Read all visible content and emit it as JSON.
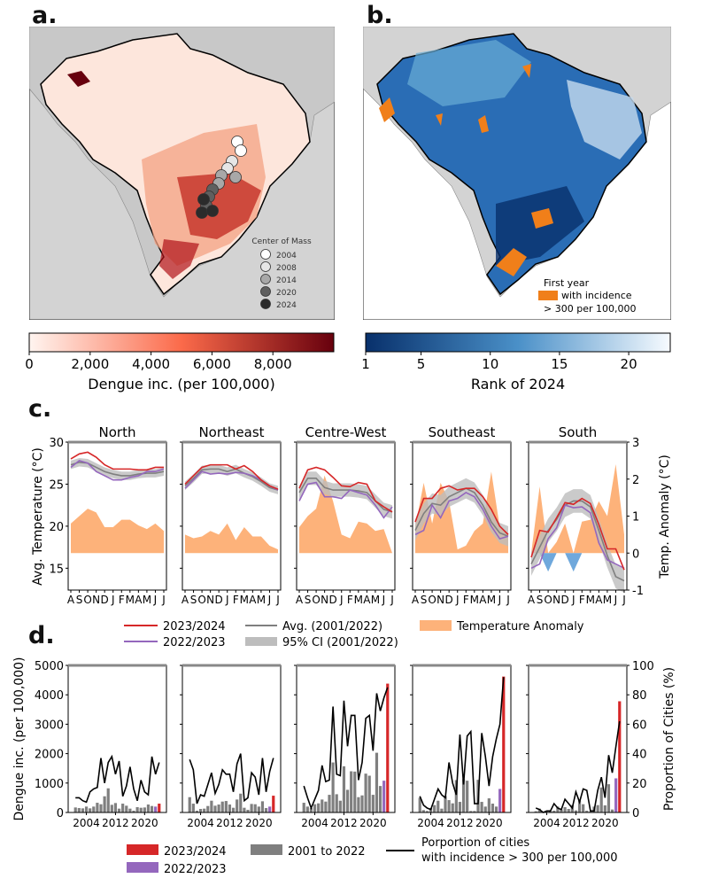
{
  "panels": {
    "a": "a.",
    "b": "b.",
    "c": "c.",
    "d": "d."
  },
  "map_a": {
    "legend_title": "Center of Mass",
    "legend_years": [
      "2004",
      "2008",
      "2014",
      "2020",
      "2024"
    ],
    "legend_colors": [
      "#ffffff",
      "#e6e6e6",
      "#a8a8a8",
      "#5f5f5f",
      "#2b2b2b"
    ],
    "colorbar": {
      "label": "Dengue inc. (per 100,000)",
      "ticks": [
        "0",
        "2,000",
        "4,000",
        "6,000",
        "8,000"
      ],
      "tick_values": [
        0,
        2000,
        4000,
        6000,
        8000
      ],
      "range": [
        0,
        10000
      ],
      "colors": [
        "#fff5f0",
        "#fb6a4a",
        "#67000d"
      ]
    }
  },
  "map_b": {
    "legend_lines": [
      "First year",
      "with incidence",
      "> 300 per 100,000"
    ],
    "legend_color": "#f07f1a",
    "colorbar": {
      "label": "Rank of 2024",
      "ticks": [
        "1",
        "5",
        "10",
        "15",
        "20"
      ],
      "tick_values": [
        1,
        5,
        10,
        15,
        20
      ],
      "range": [
        1,
        23
      ],
      "colors": [
        "#08306b",
        "#4a90c8",
        "#f7fbff"
      ]
    }
  },
  "chart_data": [
    {
      "type": "line",
      "panel": "c",
      "ylabel": "Avg. Temperature (°C)",
      "ylabel_right": "Temp. Anomaly (°C)",
      "ylim": [
        12.4,
        30
      ],
      "ylim_right": [
        -1,
        3
      ],
      "yticks": [
        15,
        20,
        25,
        30
      ],
      "yticks_right": [
        -1,
        0,
        1,
        2,
        3
      ],
      "months": [
        "A",
        "S",
        "O",
        "N",
        "D",
        "J",
        "F",
        "M",
        "A",
        "M",
        "J",
        "J"
      ],
      "colors": {
        "2023/2024": "#d62728",
        "2022/2023": "#9467bd",
        "avg": "#7f7f7f",
        "ci": "#bdbdbd",
        "anomaly_pos": "#fdb27a",
        "anomaly_neg": "#6fa8dc"
      },
      "legend": [
        "2023/2024",
        "2022/2023",
        "Avg. (2001/2022)",
        "95% CI (2001/2022)",
        "Temperature Anomaly"
      ],
      "regions": [
        {
          "title": "North",
          "y2023_2024": [
            28,
            28.6,
            28.8,
            28.2,
            27.3,
            26.8,
            26.8,
            26.8,
            26.7,
            26.7,
            27,
            27
          ],
          "y2022_2023": [
            27,
            27.8,
            27.5,
            26.5,
            26,
            25.5,
            25.5,
            25.8,
            26,
            26.5,
            26.5,
            26.8
          ],
          "avg": [
            27.3,
            27.6,
            27.5,
            27,
            26.5,
            26.2,
            26,
            26,
            26.2,
            26.3,
            26.3,
            26.5
          ],
          "ci_halfwidth": 0.5,
          "anomaly": [
            0.8,
            1.0,
            1.2,
            1.1,
            0.7,
            0.7,
            0.9,
            0.9,
            0.75,
            0.65,
            0.8,
            0.6
          ]
        },
        {
          "title": "Northeast",
          "y2023_2024": [
            25,
            26,
            27,
            27.3,
            27.3,
            27.3,
            26.8,
            27.2,
            26.5,
            25.5,
            24.8,
            24.4
          ],
          "y2022_2023": [
            24.5,
            25.5,
            26.5,
            26.2,
            26.3,
            26.2,
            26.4,
            26.3,
            26,
            25.5,
            24.8,
            24.3
          ],
          "avg": [
            24.8,
            25.7,
            26.7,
            26.8,
            26.8,
            26.5,
            26.8,
            26.3,
            25.9,
            25.3,
            24.6,
            24.3
          ],
          "ci_halfwidth": 0.5,
          "anomaly": [
            0.5,
            0.4,
            0.45,
            0.6,
            0.5,
            0.8,
            0.35,
            0.7,
            0.45,
            0.45,
            0.2,
            0.1
          ]
        },
        {
          "title": "Centre-West",
          "y2023_2024": [
            24.5,
            26.7,
            27,
            26.7,
            25.8,
            24.8,
            24.7,
            25.2,
            25,
            23,
            22.3,
            21.7
          ],
          "y2022_2023": [
            23,
            25,
            25.2,
            23.5,
            23.5,
            23.3,
            24.3,
            24,
            23.7,
            22.5,
            21,
            22.3
          ],
          "avg": [
            24,
            25.7,
            25.7,
            24.6,
            24.3,
            24.3,
            24.3,
            24.2,
            24,
            23,
            22,
            21.7
          ],
          "ci_halfwidth": 0.8,
          "anomaly": [
            0.7,
            1.0,
            1.2,
            2.1,
            1.4,
            0.5,
            0.4,
            0.85,
            0.8,
            0.6,
            0.65,
            0
          ]
        },
        {
          "title": "Southeast",
          "y2023_2024": [
            20.5,
            23.3,
            23.3,
            24.5,
            24.8,
            24.3,
            24.5,
            24.5,
            23.5,
            22,
            20,
            19
          ],
          "y2022_2023": [
            19,
            19.5,
            22.5,
            21,
            23,
            23.3,
            24,
            23.5,
            22,
            20,
            18.5,
            18.8
          ],
          "avg": [
            19.5,
            21.5,
            22.7,
            22.5,
            23.5,
            24,
            24.5,
            24,
            22.5,
            20.5,
            19.2,
            18.8
          ],
          "ci_halfwidth": 1.2,
          "anomaly": [
            0.7,
            1.9,
            0.8,
            1.9,
            1.4,
            0.1,
            0.2,
            0.6,
            0.8,
            2.2,
            0.7,
            0.5
          ]
        },
        {
          "title": "South",
          "y2023_2024": [
            16.3,
            19.5,
            19.3,
            21,
            22.8,
            22.6,
            23.3,
            22.7,
            20.2,
            17.3,
            17.3,
            14.8
          ],
          "y2022_2023": [
            15,
            15.5,
            18.5,
            19.8,
            22.5,
            22.2,
            22.3,
            21.6,
            18,
            16,
            15.5,
            15
          ],
          "avg": [
            15.5,
            17.5,
            19.5,
            20.8,
            22.5,
            23,
            23,
            22.3,
            19.5,
            16.5,
            14,
            13.5
          ],
          "ci_halfwidth": 1.4,
          "anomaly": [
            0,
            1.8,
            -0.5,
            0.3,
            0.8,
            -0.5,
            0.85,
            0.9,
            1.4,
            1.0,
            2.4,
            0.5
          ]
        }
      ]
    },
    {
      "type": "bar",
      "panel": "d",
      "ylabel": "Dengue inc. (per 100,000)",
      "ylabel_right": "Proportion of Cities (%)",
      "ylim": [
        0,
        5000
      ],
      "ylim_right": [
        0,
        100
      ],
      "yticks": [
        0,
        1000,
        2000,
        3000,
        4000,
        5000
      ],
      "yticks_right": [
        0,
        20,
        40,
        60,
        80,
        100
      ],
      "xlim": [
        1999,
        2026
      ],
      "xticks": [
        2004,
        2012,
        2020
      ],
      "years": [
        2001,
        2002,
        2003,
        2004,
        2005,
        2006,
        2007,
        2008,
        2009,
        2010,
        2011,
        2012,
        2013,
        2014,
        2015,
        2016,
        2017,
        2018,
        2019,
        2020,
        2021,
        2022,
        2023,
        2024
      ],
      "colors": {
        "2023/2024": "#d62728",
        "2022/2023": "#9467bd",
        "2001 to 2022": "#7f7f7f",
        "line": "#000000"
      },
      "legend": [
        "2023/2024",
        "2022/2023",
        "2001 to 2022",
        "Porportion of cities",
        "with incidence > 300 per 100,000"
      ],
      "regions": [
        {
          "title": "North",
          "bars": [
            170,
            150,
            140,
            200,
            140,
            200,
            330,
            280,
            550,
            820,
            260,
            320,
            130,
            300,
            230,
            130,
            60,
            180,
            160,
            170,
            270,
            220,
            200,
            300
          ],
          "proportion": [
            10,
            10,
            8,
            7,
            14,
            16,
            17,
            37,
            20,
            34,
            38,
            26,
            35,
            11,
            18,
            31,
            16,
            8,
            22,
            14,
            12,
            38,
            26,
            34
          ]
        },
        {
          "title": "Northeast",
          "bars": [
            520,
            300,
            60,
            120,
            130,
            220,
            400,
            230,
            270,
            370,
            390,
            270,
            160,
            440,
            640,
            160,
            90,
            290,
            280,
            200,
            380,
            150,
            200,
            570
          ],
          "proportion": [
            36,
            29,
            6,
            12,
            11,
            19,
            27,
            13,
            19,
            29,
            26,
            26,
            14,
            33,
            40,
            8,
            10,
            27,
            24,
            12,
            37,
            14,
            28,
            37
          ]
        },
        {
          "title": "Centre-West",
          "bars": [
            330,
            200,
            150,
            280,
            310,
            440,
            370,
            600,
            1700,
            620,
            400,
            1570,
            770,
            1400,
            1390,
            520,
            580,
            1320,
            1250,
            600,
            2030,
            900,
            1080,
            4380
          ],
          "proportion": [
            18,
            10,
            3,
            9,
            15,
            32,
            21,
            22,
            72,
            26,
            25,
            76,
            45,
            66,
            66,
            22,
            34,
            64,
            66,
            42,
            81,
            69,
            78,
            85
          ]
        },
        {
          "title": "Southeast",
          "bars": [
            500,
            80,
            50,
            150,
            250,
            400,
            130,
            560,
            420,
            310,
            1100,
            360,
            1130,
            1080,
            50,
            50,
            1110,
            360,
            200,
            480,
            300,
            200,
            800,
            4620
          ],
          "proportion": [
            11,
            5,
            3,
            2,
            9,
            16,
            12,
            10,
            34,
            20,
            12,
            53,
            19,
            52,
            55,
            6,
            6,
            54,
            38,
            18,
            38,
            50,
            60,
            92
          ]
        },
        {
          "title": "South",
          "bars": [
            40,
            130,
            30,
            20,
            50,
            60,
            200,
            100,
            180,
            120,
            250,
            70,
            400,
            280,
            60,
            30,
            200,
            250,
            850,
            240,
            960,
            100,
            1160,
            3780
          ],
          "proportion": [
            3,
            2,
            0,
            1,
            1,
            6,
            3,
            2,
            9,
            6,
            3,
            14,
            7,
            16,
            15,
            1,
            1,
            15,
            24,
            10,
            39,
            27,
            45,
            62
          ]
        }
      ]
    }
  ]
}
